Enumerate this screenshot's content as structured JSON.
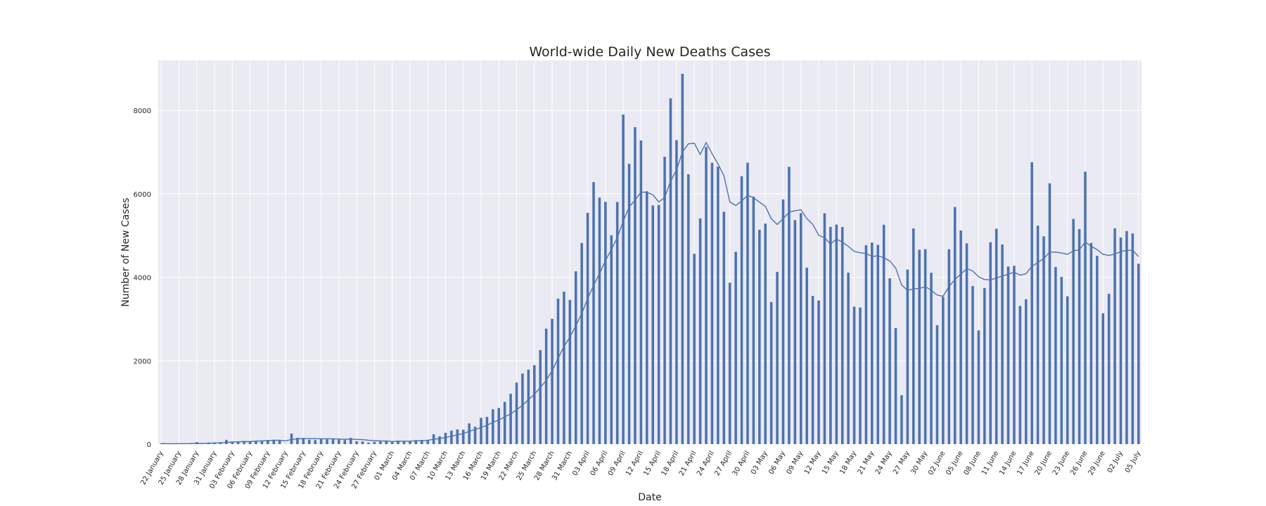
{
  "chart_data": {
    "type": "bar",
    "title": "World-wide Daily New Deaths Cases",
    "xlabel": "Date",
    "ylabel": "Number of New Cases",
    "ylim": [
      0,
      9200
    ],
    "yticks": [
      0,
      2000,
      4000,
      6000,
      8000
    ],
    "grid": true,
    "background": "#eaeaf2",
    "bar_color": "#4c72b0",
    "x_tick_every": 3,
    "categories": [
      "22 January",
      "23 January",
      "24 January",
      "25 January",
      "26 January",
      "27 January",
      "28 January",
      "29 January",
      "30 January",
      "31 January",
      "01 February",
      "02 February",
      "03 February",
      "04 February",
      "05 February",
      "06 February",
      "07 February",
      "08 February",
      "09 February",
      "10 February",
      "11 February",
      "12 February",
      "13 February",
      "14 February",
      "15 February",
      "16 February",
      "17 February",
      "18 February",
      "19 February",
      "20 February",
      "21 February",
      "22 February",
      "23 February",
      "24 February",
      "25 February",
      "26 February",
      "27 February",
      "28 February",
      "29 February",
      "01 March",
      "02 March",
      "03 March",
      "04 March",
      "05 March",
      "06 March",
      "07 March",
      "08 March",
      "09 March",
      "10 March",
      "11 March",
      "12 March",
      "13 March",
      "14 March",
      "15 March",
      "16 March",
      "17 March",
      "18 March",
      "19 March",
      "20 March",
      "21 March",
      "22 March",
      "23 March",
      "24 March",
      "25 March",
      "26 March",
      "27 March",
      "28 March",
      "29 March",
      "30 March",
      "31 March",
      "01 April",
      "02 April",
      "03 April",
      "04 April",
      "05 April",
      "06 April",
      "07 April",
      "08 April",
      "09 April",
      "10 April",
      "11 April",
      "12 April",
      "13 April",
      "14 April",
      "15 April",
      "16 April",
      "17 April",
      "18 April",
      "19 April",
      "20 April",
      "21 April",
      "22 April",
      "23 April",
      "24 April",
      "25 April",
      "26 April",
      "27 April",
      "28 April",
      "29 April",
      "30 April",
      "01 May",
      "02 May",
      "03 May",
      "04 May",
      "05 May",
      "06 May",
      "07 May",
      "08 May",
      "09 May",
      "10 May",
      "11 May",
      "12 May",
      "13 May",
      "14 May",
      "15 May",
      "16 May",
      "17 May",
      "18 May",
      "19 May",
      "20 May",
      "21 May",
      "22 May",
      "23 May",
      "24 May",
      "25 May",
      "26 May",
      "27 May",
      "28 May",
      "29 May",
      "30 May",
      "31 May",
      "01 June",
      "02 June",
      "03 June",
      "04 June",
      "05 June",
      "06 June",
      "07 June",
      "08 June",
      "09 June",
      "10 June",
      "11 June",
      "12 June",
      "13 June",
      "14 June",
      "15 June",
      "16 June",
      "17 June",
      "18 June",
      "19 June",
      "20 June",
      "21 June",
      "22 June",
      "23 June",
      "24 June",
      "25 June",
      "26 June",
      "27 June",
      "28 June",
      "29 June",
      "30 June",
      "01 July",
      "02 July",
      "03 July",
      "04 July",
      "05 July"
    ],
    "series": [
      {
        "type": "bar",
        "values": [
          17,
          1,
          8,
          16,
          14,
          26,
          49,
          2,
          38,
          42,
          46,
          103,
          64,
          66,
          72,
          70,
          85,
          87,
          100,
          107,
          100,
          5,
          252,
          152,
          143,
          105,
          98,
          136,
          115,
          118,
          109,
          97,
          150,
          71,
          64,
          37,
          58,
          64,
          70,
          55,
          86,
          73,
          80,
          98,
          102,
          106,
          236,
          190,
          273,
          325,
          353,
          345,
          497,
          418,
          632,
          653,
          838,
          867,
          1015,
          1207,
          1477,
          1692,
          1785,
          1894,
          2255,
          2769,
          3005,
          3489,
          3655,
          3459,
          4143,
          4823,
          5546,
          6284,
          5911,
          5808,
          5009,
          5807,
          7903,
          6721,
          7599,
          7280,
          6064,
          5723,
          5734,
          6889,
          8292,
          7290,
          8880,
          6470,
          4564,
          5413,
          7125,
          6746,
          6655,
          5572,
          3870,
          4611,
          6423,
          6747,
          5935,
          5140,
          5289,
          3408,
          4131,
          5868,
          6650,
          5371,
          5538,
          4231,
          3553,
          3445,
          5535,
          5208,
          5265,
          5207,
          4112,
          3297,
          3276,
          4770,
          4833,
          4777,
          5260,
          3978,
          2784,
          1174,
          4188,
          5171,
          4660,
          4676,
          4111,
          2852,
          3530,
          4673,
          5685,
          5122,
          4815,
          3790,
          2727,
          3743,
          4841,
          5165,
          4786,
          4260,
          4275,
          3315,
          3475,
          6761,
          5240,
          4982,
          6254,
          4248,
          4011,
          3546,
          5399,
          5158,
          6533,
          4825,
          4516,
          3138,
          3605,
          5175,
          4955,
          5108,
          5052,
          4327
        ]
      },
      {
        "type": "line",
        "values": [
          17,
          9,
          9,
          11,
          11,
          14,
          19,
          17,
          21,
          26,
          32,
          44,
          49,
          56,
          63,
          61,
          73,
          79,
          85,
          92,
          94,
          78,
          115,
          126,
          137,
          132,
          134,
          128,
          129,
          128,
          123,
          116,
          122,
          113,
          109,
          93,
          85,
          78,
          76,
          65,
          69,
          70,
          72,
          80,
          83,
          89,
          118,
          133,
          160,
          190,
          224,
          251,
          309,
          353,
          398,
          453,
          525,
          579,
          655,
          727,
          824,
          932,
          1063,
          1198,
          1356,
          1531,
          1757,
          2056,
          2340,
          2570,
          2838,
          3131,
          3489,
          3809,
          4092,
          4401,
          4667,
          4952,
          5347,
          5689,
          5851,
          6042,
          6040,
          5979,
          5807,
          5915,
          6303,
          6575,
          7006,
          7200,
          7216,
          6948,
          7230,
          6966,
          6719,
          6437,
          5807,
          5722,
          5829,
          5965,
          5909,
          5801,
          5702,
          5404,
          5268,
          5406,
          5562,
          5597,
          5620,
          5409,
          5269,
          5009,
          4950,
          4796,
          4917,
          4844,
          4743,
          4623,
          4588,
          4574,
          4499,
          4517,
          4470,
          4392,
          4222,
          3816,
          3687,
          3723,
          3733,
          3777,
          3690,
          3574,
          3546,
          3779,
          3950,
          4079,
          4208,
          4154,
          4012,
          3948,
          3938,
          3986,
          4027,
          4075,
          4124,
          4053,
          4086,
          4265,
          4355,
          4450,
          4606,
          4605,
          4582,
          4552,
          4633,
          4661,
          4846,
          4745,
          4665,
          4552,
          4525,
          4556,
          4618,
          4647,
          4648,
          4499
        ]
      }
    ]
  }
}
